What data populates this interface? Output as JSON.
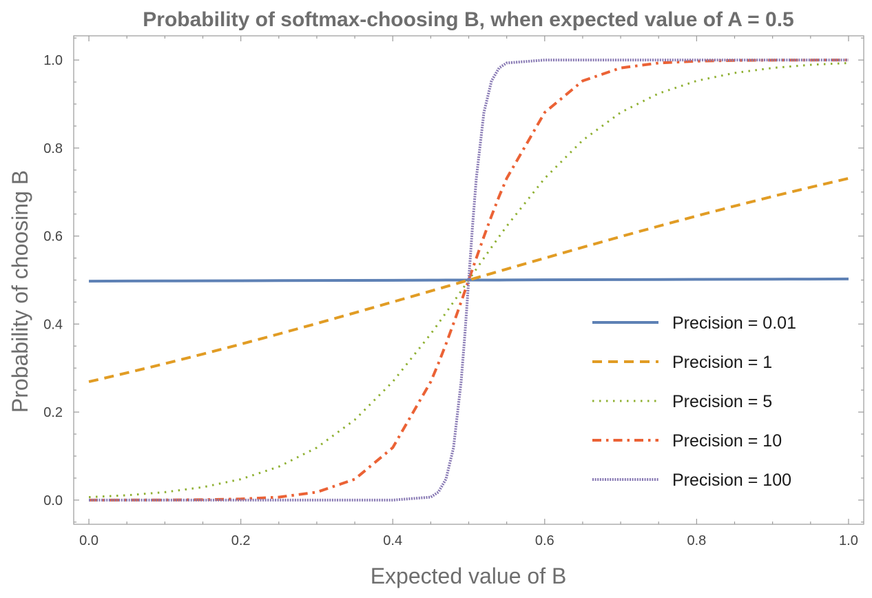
{
  "chart_data": {
    "type": "line",
    "title": "Probability of softmax-choosing B, when expected value of A = 0.5",
    "xlabel": "Expected value of B",
    "ylabel": "Probability of choosing B",
    "xlim": [
      -0.02,
      1.02
    ],
    "ylim": [
      -0.055,
      1.055
    ],
    "xticks": [
      0.0,
      0.2,
      0.4,
      0.6,
      0.8,
      1.0
    ],
    "xtick_labels": [
      "0.0",
      "0.2",
      "0.4",
      "0.6",
      "0.8",
      "1.0"
    ],
    "yticks": [
      0.0,
      0.2,
      0.4,
      0.6,
      0.8,
      1.0
    ],
    "ytick_labels": [
      "0.0",
      "0.2",
      "0.4",
      "0.6",
      "0.8",
      "1.0"
    ],
    "x_minor_step": 0.05,
    "y_minor_step": 0.05,
    "grid": false,
    "legend_position": "right",
    "x": [
      0.0,
      0.05,
      0.1,
      0.15,
      0.2,
      0.25,
      0.3,
      0.35,
      0.4,
      0.45,
      0.46,
      0.47,
      0.48,
      0.49,
      0.495,
      0.5,
      0.505,
      0.51,
      0.52,
      0.53,
      0.54,
      0.55,
      0.6,
      0.65,
      0.7,
      0.75,
      0.8,
      0.85,
      0.9,
      0.95,
      1.0
    ],
    "series": [
      {
        "name": "Precision = 0.01",
        "color": "#5e81b5",
        "dash": "solid",
        "values": [
          0.4975,
          0.4978,
          0.498,
          0.4983,
          0.4985,
          0.4988,
          0.499,
          0.4993,
          0.4995,
          0.4998,
          0.4998,
          0.4999,
          0.4999,
          0.5,
          0.5,
          0.5,
          0.5,
          0.5,
          0.5001,
          0.5001,
          0.5001,
          0.5002,
          0.5005,
          0.5007,
          0.501,
          0.5012,
          0.5015,
          0.5017,
          0.502,
          0.5022,
          0.5025
        ]
      },
      {
        "name": "Precision = 1",
        "color": "#e19c24",
        "dash": "dashed",
        "values": [
          0.2689,
          0.2891,
          0.31,
          0.3318,
          0.3543,
          0.3775,
          0.4013,
          0.4256,
          0.4502,
          0.475,
          0.48,
          0.485,
          0.49,
          0.495,
          0.4975,
          0.5,
          0.5025,
          0.505,
          0.51,
          0.515,
          0.52,
          0.525,
          0.5498,
          0.5744,
          0.5987,
          0.6225,
          0.6457,
          0.6682,
          0.69,
          0.7109,
          0.7311
        ]
      },
      {
        "name": "Precision = 5",
        "color": "#8fb032",
        "dash": "dotted",
        "values": [
          0.0067,
          0.0109,
          0.018,
          0.0293,
          0.0474,
          0.0759,
          0.1192,
          0.1824,
          0.2689,
          0.3775,
          0.4013,
          0.4256,
          0.4502,
          0.475,
          0.4875,
          0.5,
          0.5125,
          0.525,
          0.5498,
          0.5744,
          0.5987,
          0.6225,
          0.7311,
          0.8176,
          0.8808,
          0.9241,
          0.9526,
          0.9707,
          0.982,
          0.9891,
          0.9933
        ]
      },
      {
        "name": "Precision = 10",
        "color": "#eb6235",
        "dash": "dashdot",
        "values": [
          0.0,
          0.0001,
          0.0003,
          0.0009,
          0.0025,
          0.0067,
          0.018,
          0.0474,
          0.1192,
          0.2689,
          0.31,
          0.3543,
          0.4013,
          0.4502,
          0.475,
          0.5,
          0.525,
          0.5498,
          0.5987,
          0.6457,
          0.69,
          0.7311,
          0.8808,
          0.9526,
          0.982,
          0.9933,
          0.9975,
          0.9991,
          0.9997,
          0.9999,
          1.0
        ]
      },
      {
        "name": "Precision = 100",
        "color": "#8778b3",
        "dash": "densedotted",
        "values": [
          0.0,
          0.0,
          0.0,
          0.0,
          0.0,
          0.0,
          0.0,
          0.0,
          0.0,
          0.0067,
          0.018,
          0.0474,
          0.1192,
          0.2689,
          0.3775,
          0.5,
          0.6225,
          0.7311,
          0.8808,
          0.9526,
          0.982,
          0.9933,
          1.0,
          1.0,
          1.0,
          1.0,
          1.0,
          1.0,
          1.0,
          1.0,
          1.0
        ]
      }
    ]
  }
}
